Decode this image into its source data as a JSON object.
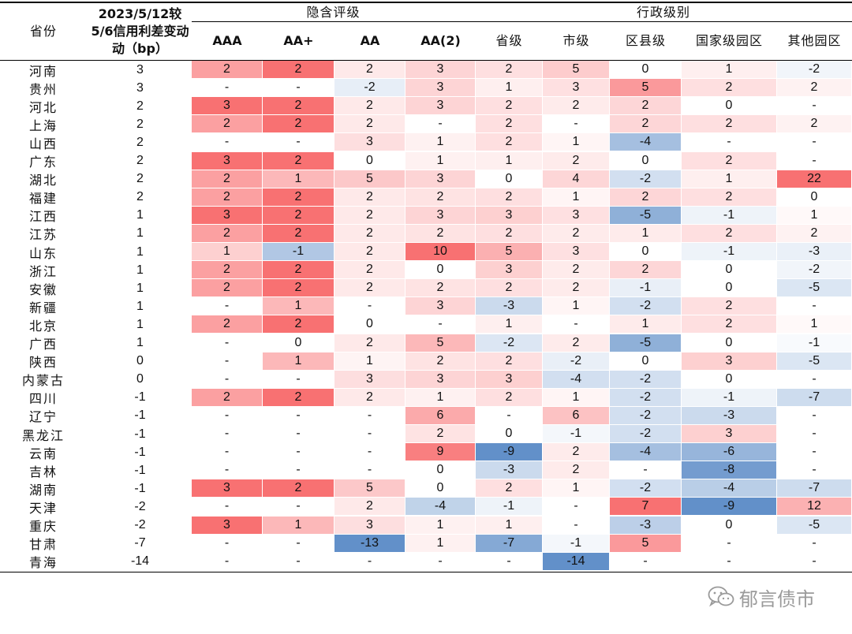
{
  "chart_data": {
    "type": "heatmap",
    "header": {
      "province": "省份",
      "change": "2023/5/12较5/6信用利差变动（bp）",
      "change_lines": [
        "2023/5/12较",
        "5/6信用利差变动",
        "动（bp）"
      ],
      "group_implied": "隐含评级",
      "group_admin": "行政级别"
    },
    "columns": [
      "AAA",
      "AA+",
      "AA",
      "AA(2)",
      "省级",
      "市级",
      "区县级",
      "国家级园区",
      "其他园区"
    ],
    "rows": [
      {
        "province": "河南",
        "change": 3,
        "values": [
          2,
          2,
          2,
          3,
          2,
          5,
          0,
          1,
          -2
        ]
      },
      {
        "province": "贵州",
        "change": 3,
        "values": [
          "-",
          "-",
          -2,
          3,
          1,
          3,
          5,
          2,
          2
        ]
      },
      {
        "province": "河北",
        "change": 2,
        "values": [
          3,
          2,
          2,
          3,
          2,
          2,
          2,
          0,
          "-"
        ]
      },
      {
        "province": "上海",
        "change": 2,
        "values": [
          2,
          2,
          2,
          "-",
          2,
          "-",
          2,
          2,
          2
        ]
      },
      {
        "province": "山西",
        "change": 2,
        "values": [
          "-",
          "-",
          3,
          1,
          2,
          1,
          -4,
          "-",
          "-"
        ]
      },
      {
        "province": "广东",
        "change": 2,
        "values": [
          3,
          2,
          0,
          1,
          1,
          2,
          0,
          2,
          "-"
        ]
      },
      {
        "province": "湖北",
        "change": 2,
        "values": [
          2,
          1,
          5,
          3,
          0,
          4,
          -2,
          1,
          22
        ]
      },
      {
        "province": "福建",
        "change": 2,
        "values": [
          2,
          2,
          2,
          2,
          2,
          1,
          2,
          2,
          0
        ]
      },
      {
        "province": "江西",
        "change": 1,
        "values": [
          3,
          2,
          2,
          3,
          3,
          3,
          -5,
          -1,
          1
        ]
      },
      {
        "province": "江苏",
        "change": 1,
        "values": [
          2,
          2,
          2,
          2,
          2,
          2,
          1,
          2,
          2
        ]
      },
      {
        "province": "山东",
        "change": 1,
        "values": [
          1,
          -1,
          2,
          10,
          5,
          3,
          0,
          -1,
          -3
        ]
      },
      {
        "province": "浙江",
        "change": 1,
        "values": [
          2,
          2,
          2,
          0,
          3,
          2,
          2,
          0,
          -2
        ]
      },
      {
        "province": "安徽",
        "change": 1,
        "values": [
          2,
          2,
          2,
          2,
          2,
          2,
          -1,
          0,
          -5
        ]
      },
      {
        "province": "新疆",
        "change": 1,
        "values": [
          "-",
          1,
          "-",
          3,
          -3,
          1,
          -2,
          2,
          "-"
        ]
      },
      {
        "province": "北京",
        "change": 1,
        "values": [
          2,
          2,
          0,
          "-",
          1,
          "-",
          1,
          2,
          1
        ]
      },
      {
        "province": "广西",
        "change": 1,
        "values": [
          "-",
          0,
          2,
          5,
          -2,
          2,
          -5,
          0,
          -1
        ]
      },
      {
        "province": "陕西",
        "change": 0,
        "values": [
          "-",
          1,
          1,
          2,
          2,
          -2,
          0,
          3,
          -5
        ]
      },
      {
        "province": "内蒙古",
        "change": 0,
        "values": [
          "-",
          "-",
          3,
          3,
          3,
          -4,
          -2,
          0,
          "-"
        ]
      },
      {
        "province": "四川",
        "change": -1,
        "values": [
          2,
          2,
          2,
          1,
          2,
          1,
          -2,
          -1,
          -7
        ]
      },
      {
        "province": "辽宁",
        "change": -1,
        "values": [
          "-",
          "-",
          "-",
          6,
          "-",
          6,
          -2,
          -3,
          "-"
        ]
      },
      {
        "province": "黑龙江",
        "change": -1,
        "values": [
          "-",
          "-",
          "-",
          2,
          0,
          -1,
          -2,
          3,
          "-"
        ]
      },
      {
        "province": "云南",
        "change": -1,
        "values": [
          "-",
          "-",
          "-",
          9,
          -9,
          2,
          -4,
          -6,
          "-"
        ]
      },
      {
        "province": "吉林",
        "change": -1,
        "values": [
          "-",
          "-",
          "-",
          0,
          -3,
          2,
          "-",
          -8,
          "-"
        ]
      },
      {
        "province": "湖南",
        "change": -1,
        "values": [
          3,
          2,
          5,
          0,
          2,
          1,
          -2,
          -4,
          -7
        ]
      },
      {
        "province": "天津",
        "change": -2,
        "values": [
          "-",
          "-",
          2,
          -4,
          -1,
          "-",
          7,
          -9,
          12
        ]
      },
      {
        "province": "重庆",
        "change": -2,
        "values": [
          3,
          1,
          3,
          1,
          1,
          "-",
          -3,
          0,
          -5
        ]
      },
      {
        "province": "甘肃",
        "change": -7,
        "values": [
          "-",
          "-",
          -13,
          1,
          -7,
          -1,
          5,
          "-",
          "-"
        ]
      },
      {
        "province": "青海",
        "change": -14,
        "values": [
          "-",
          "-",
          "-",
          "-",
          "-",
          -14,
          "-",
          "-",
          "-"
        ]
      }
    ],
    "colors": {
      "positive": "#f8696b",
      "negative": "#5a8ac6",
      "neutral": "#ffffff"
    }
  },
  "watermark": {
    "text": "郁言债市",
    "icon": "wechat-icon"
  }
}
